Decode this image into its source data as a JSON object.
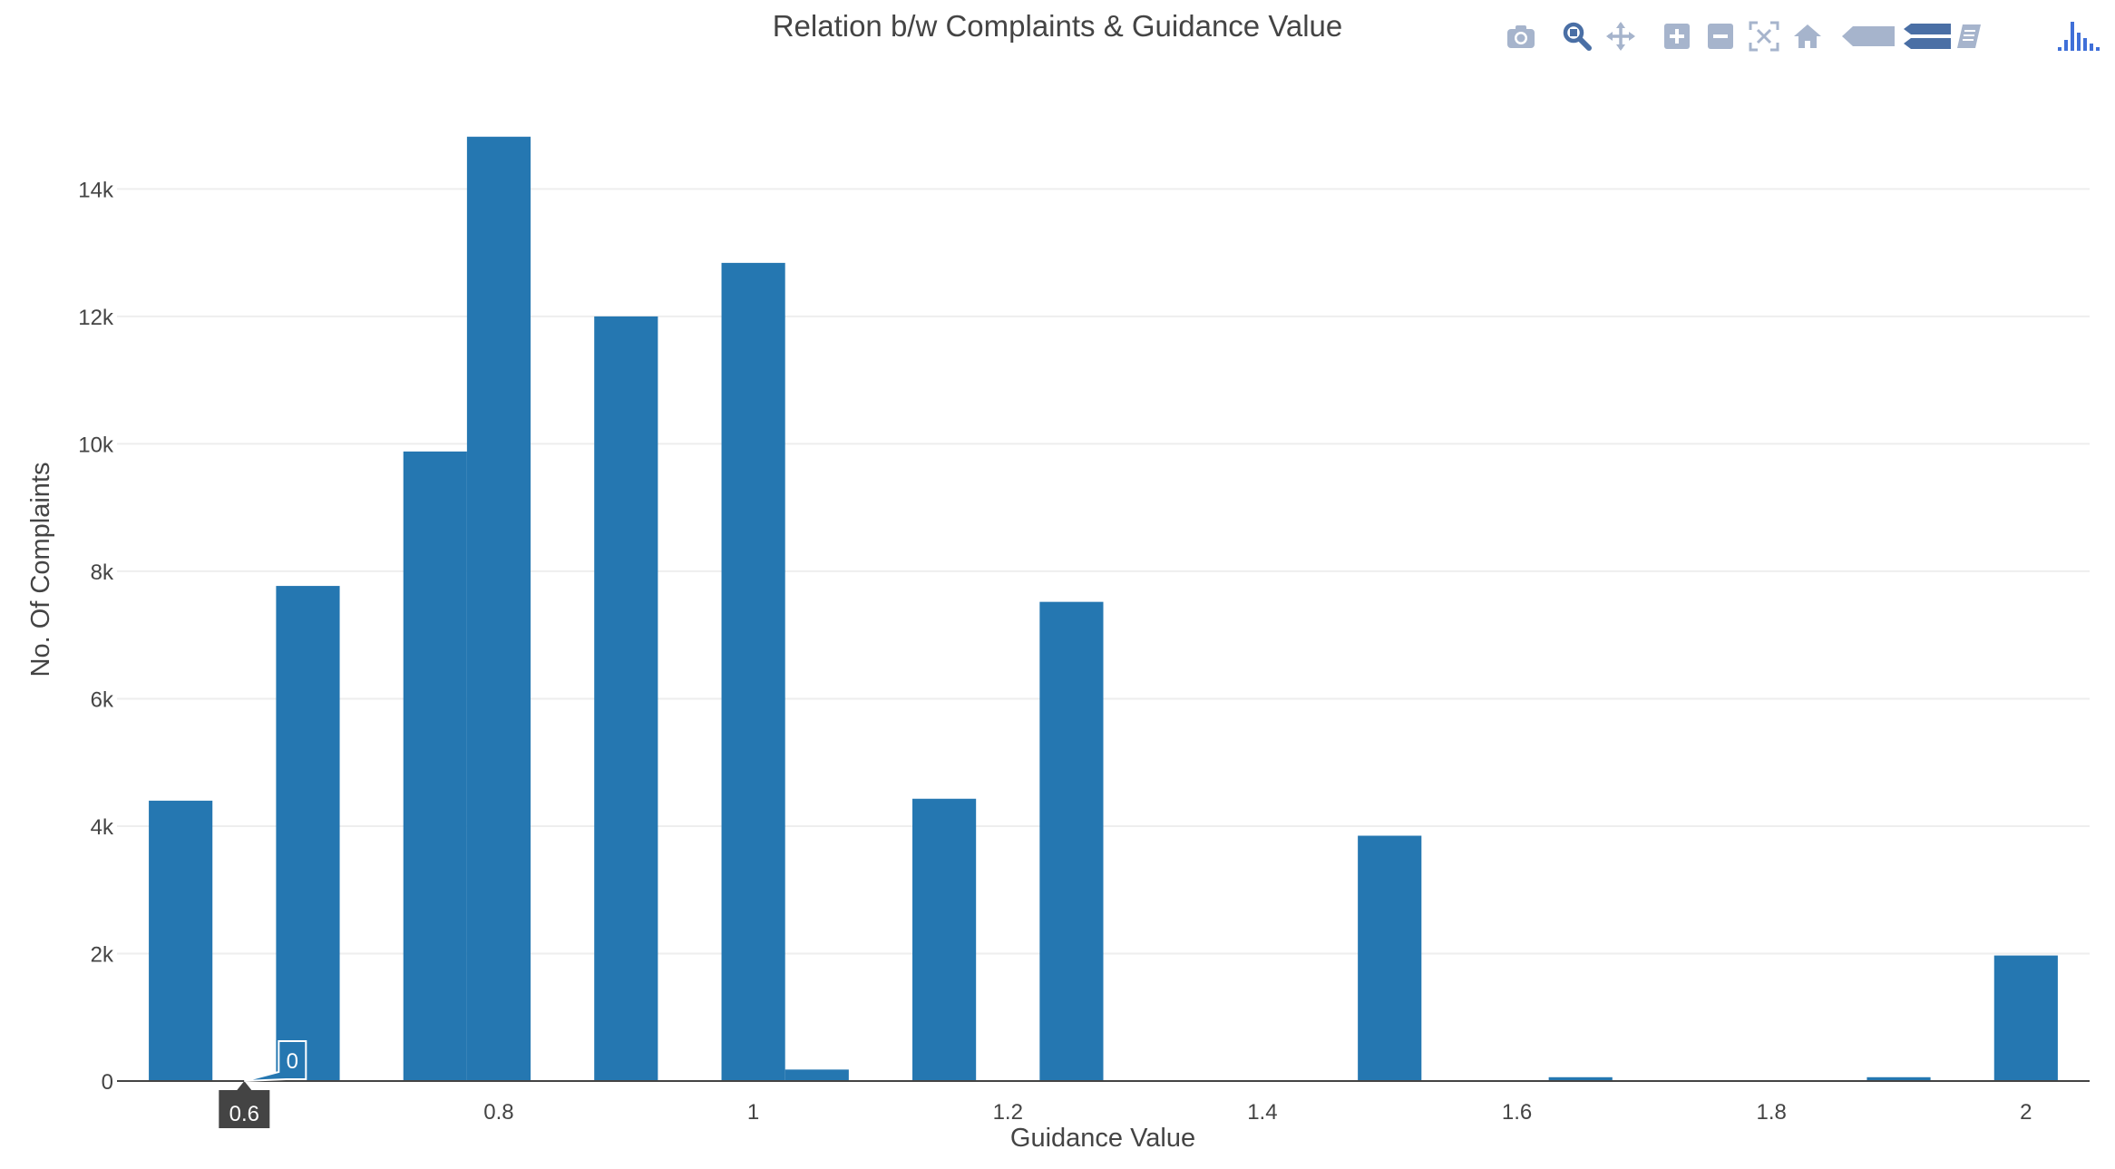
{
  "chart_data": {
    "type": "bar",
    "title": "Relation b/w Complaints & Guidance Value",
    "xlabel": "Guidance Value",
    "ylabel": "No. Of Complaints",
    "xlim": [
      0.5,
      2.05
    ],
    "ylim": [
      0,
      15400
    ],
    "grid": true,
    "bar_width": 0.05,
    "x": [
      0.55,
      0.6,
      0.65,
      0.7,
      0.75,
      0.8,
      0.85,
      0.9,
      0.95,
      1.0,
      1.05,
      1.1,
      1.15,
      1.2,
      1.25,
      1.3,
      1.35,
      1.4,
      1.45,
      1.5,
      1.55,
      1.6,
      1.65,
      1.7,
      1.75,
      1.8,
      1.85,
      1.9,
      1.95,
      2.0
    ],
    "values": [
      4400,
      0,
      7770,
      0,
      9880,
      14820,
      0,
      12000,
      0,
      12840,
      180,
      0,
      4430,
      0,
      7520,
      0,
      0,
      0,
      0,
      3850,
      0,
      0,
      60,
      0,
      0,
      0,
      0,
      60,
      0,
      1970
    ],
    "color": "#2577b1",
    "x_ticks": [
      0.8,
      1,
      1.2,
      1.4,
      1.6,
      1.8,
      2
    ],
    "x_tick_labels": [
      "0.8",
      "1",
      "1.2",
      "1.4",
      "1.6",
      "1.8",
      "2"
    ],
    "y_ticks": [
      0,
      2000,
      4000,
      6000,
      8000,
      10000,
      12000,
      14000
    ],
    "y_tick_labels": [
      "0",
      "2k",
      "4k",
      "6k",
      "8k",
      "10k",
      "12k",
      "14k"
    ],
    "hover": {
      "x": 0.6,
      "x_label": "0.6",
      "y_label": "0"
    }
  },
  "modebar": {
    "buttons": [
      "camera-icon",
      "zoom-icon",
      "pan-icon",
      "zoom-in-icon",
      "zoom-out-icon",
      "autoscale-icon",
      "reset-axes-icon",
      "spike-lines-icon",
      "compare-data-icon",
      "show-closest-icon",
      "plotly-logo-icon"
    ],
    "colors": {
      "icon": "#a6b4cc",
      "active": "#4a6fa5",
      "logo": "#3f6fd8"
    }
  }
}
